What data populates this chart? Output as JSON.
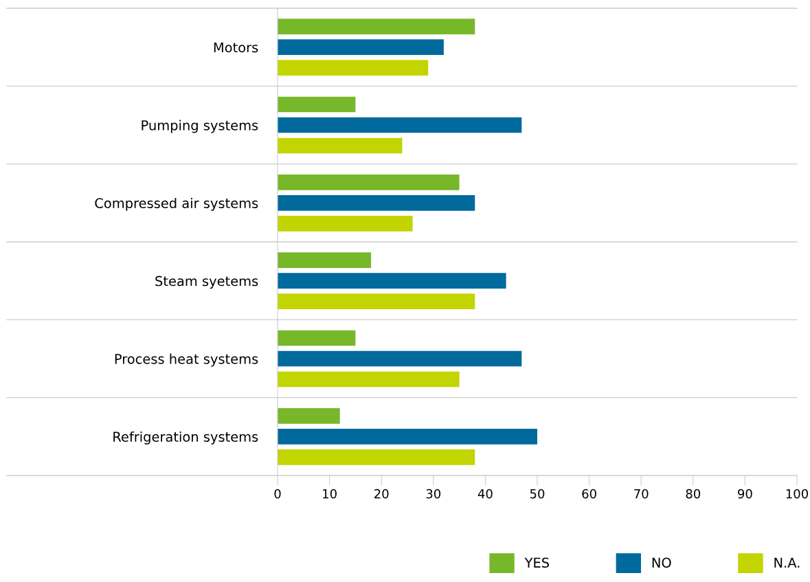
{
  "chart_data": {
    "type": "bar",
    "orientation": "horizontal",
    "categories": [
      "Motors",
      "Pumping systems",
      "Compressed air systems",
      "Steam syetems",
      "Process heat systems",
      "Refrigeration systems"
    ],
    "series": [
      {
        "name": "YES",
        "color": "#77b82a",
        "values": [
          38,
          15,
          35,
          18,
          15,
          12
        ]
      },
      {
        "name": "NO",
        "color": "#006a9c",
        "values": [
          32,
          47,
          38,
          44,
          47,
          50
        ]
      },
      {
        "name": "N.A.",
        "color": "#c2d500",
        "values": [
          29,
          24,
          26,
          38,
          35,
          38
        ]
      }
    ],
    "xlim": [
      0,
      100
    ],
    "xticks": [
      0,
      10,
      20,
      30,
      40,
      50,
      60,
      70,
      80,
      90,
      100
    ],
    "grid": "y",
    "legend": "bottom right"
  }
}
